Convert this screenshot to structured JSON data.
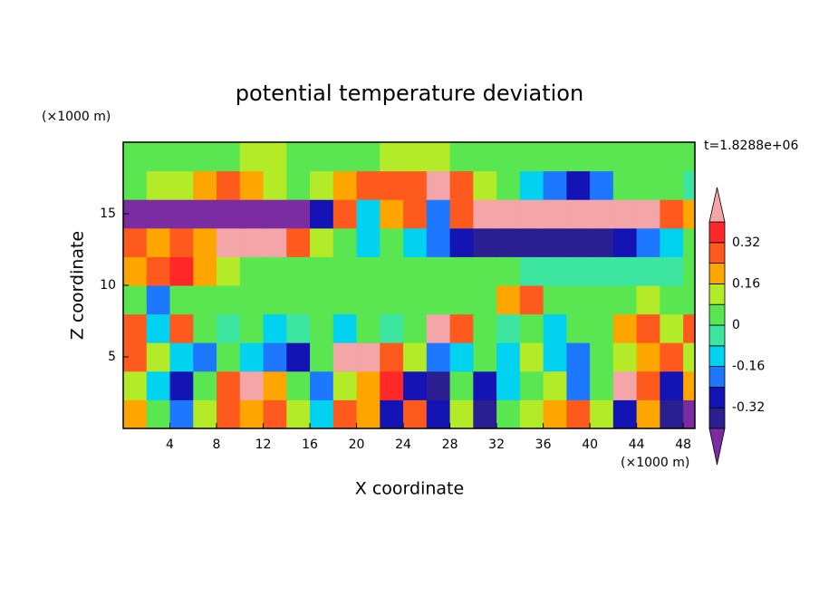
{
  "chart_data": {
    "type": "contour",
    "title": "potential temperature deviation",
    "x_label": "X coordinate",
    "y_label": "Z coordinate",
    "x_unit": "(×1000 m)",
    "y_unit": "(×1000 m)",
    "time_label": "t=1.8288e+06",
    "xlim": [
      0,
      49
    ],
    "ylim": [
      0,
      20
    ],
    "xticks": [
      4,
      8,
      12,
      16,
      20,
      24,
      28,
      32,
      36,
      40,
      44,
      48
    ],
    "yticks": [
      5,
      10,
      15
    ],
    "x": [
      1,
      3,
      5,
      7,
      9,
      11,
      13,
      15,
      17,
      19,
      21,
      23,
      25,
      27,
      29,
      31,
      33,
      35,
      37,
      39,
      41,
      43,
      45,
      47,
      49
    ],
    "y": [
      1,
      3,
      5,
      7,
      9,
      11,
      13,
      15,
      17,
      19
    ],
    "z": [
      [
        0.2,
        0.0,
        -0.2,
        0.1,
        0.25,
        0.2,
        0.3,
        0.1,
        -0.1,
        0.3,
        0.2,
        -0.3,
        0.25,
        -0.3,
        0.1,
        -0.35,
        0.0,
        0.1,
        0.2,
        0.3,
        0.1,
        -0.3,
        0.2,
        -0.4,
        -0.45
      ],
      [
        0.1,
        -0.1,
        -0.3,
        0.0,
        0.3,
        0.4,
        0.2,
        0.0,
        -0.2,
        0.1,
        0.2,
        0.35,
        -0.3,
        -0.35,
        0.05,
        -0.3,
        -0.1,
        0.0,
        0.1,
        -0.2,
        0.0,
        0.45,
        0.3,
        -0.3,
        0.2
      ],
      [
        0.3,
        0.1,
        -0.1,
        -0.2,
        0.0,
        -0.1,
        -0.2,
        -0.3,
        0.0,
        0.45,
        0.45,
        0.3,
        0.1,
        -0.2,
        -0.1,
        0.0,
        -0.1,
        0.1,
        -0.1,
        -0.2,
        0.0,
        0.1,
        0.2,
        0.3,
        0.1
      ],
      [
        0.3,
        -0.1,
        0.3,
        0.0,
        -0.05,
        0.0,
        -0.1,
        -0.05,
        0.0,
        -0.1,
        0.0,
        -0.05,
        0.0,
        0.45,
        0.3,
        0.0,
        -0.05,
        0.0,
        -0.1,
        0.0,
        0.05,
        0.2,
        0.3,
        0.1,
        0.3
      ],
      [
        0.0,
        -0.2,
        0.05,
        0.05,
        0.05,
        0.05,
        0.05,
        0.05,
        0.0,
        0.0,
        0.05,
        0.05,
        0.05,
        0.05,
        0.05,
        0.05,
        0.2,
        0.25,
        0.05,
        0.05,
        0.05,
        0.05,
        0.1,
        0.0,
        0.0
      ],
      [
        0.2,
        0.3,
        0.35,
        0.2,
        0.1,
        0.05,
        0.05,
        0.05,
        0.05,
        0.05,
        0.05,
        0.05,
        0.05,
        0.05,
        0.05,
        0.05,
        0.0,
        -0.05,
        -0.05,
        -0.05,
        -0.05,
        -0.05,
        -0.05,
        -0.05,
        0.0
      ],
      [
        0.3,
        0.2,
        0.3,
        0.2,
        0.45,
        0.45,
        0.45,
        0.3,
        0.1,
        0.05,
        -0.1,
        0.0,
        -0.1,
        -0.2,
        -0.3,
        -0.35,
        -0.38,
        -0.38,
        -0.38,
        -0.38,
        -0.35,
        -0.3,
        -0.2,
        -0.1,
        0.0
      ],
      [
        -0.45,
        -0.45,
        -0.45,
        -0.45,
        -0.45,
        -0.45,
        -0.45,
        -0.45,
        -0.3,
        0.3,
        -0.1,
        0.2,
        0.3,
        -0.2,
        0.3,
        0.45,
        0.45,
        0.45,
        0.45,
        0.45,
        0.45,
        0.45,
        0.4,
        0.3,
        0.2
      ],
      [
        0.05,
        0.1,
        0.1,
        0.2,
        0.3,
        0.2,
        0.1,
        0.0,
        0.1,
        0.2,
        0.3,
        0.3,
        0.3,
        0.4,
        0.3,
        0.1,
        0.0,
        -0.1,
        -0.2,
        -0.3,
        -0.2,
        0.0,
        0.05,
        0.0,
        -0.05
      ],
      [
        0.05,
        0.05,
        0.05,
        0.05,
        0.05,
        0.1,
        0.1,
        0.05,
        0.05,
        0.05,
        0.05,
        0.1,
        0.1,
        0.1,
        0.05,
        0.05,
        0.05,
        0.05,
        0.05,
        0.05,
        0.05,
        0.05,
        0.05,
        0.05,
        0.05
      ]
    ],
    "levels": [
      -0.4,
      -0.32,
      -0.24,
      -0.16,
      -0.08,
      0,
      0.08,
      0.16,
      0.24,
      0.32,
      0.4
    ],
    "colors": [
      "#7b2ca0",
      "#2a1e90",
      "#1414b4",
      "#1e78ff",
      "#00d2f0",
      "#3ce6a0",
      "#5ae650",
      "#b4eb28",
      "#ffa500",
      "#ff5a1e",
      "#ff2828",
      "#f4a5a8"
    ],
    "colorbar_ticks": [
      0.32,
      0.16,
      0,
      -0.16,
      -0.32
    ]
  }
}
